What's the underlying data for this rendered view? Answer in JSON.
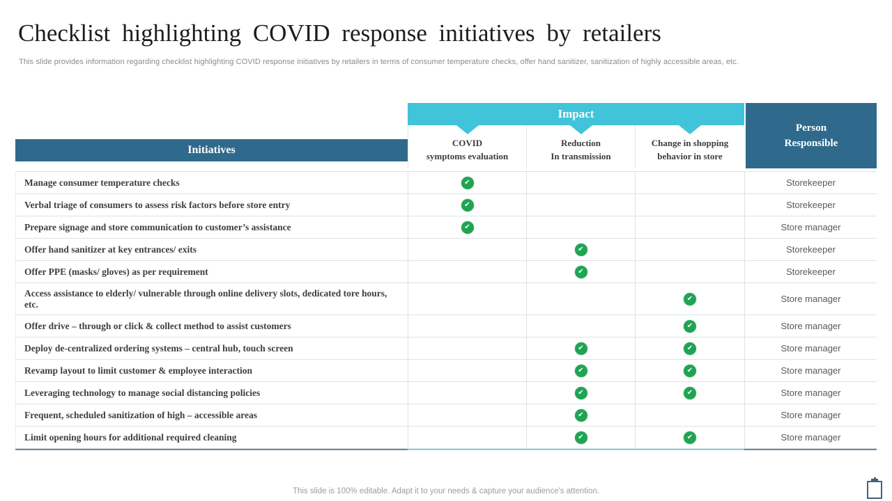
{
  "slide": {
    "title": "Checklist highlighting COVID response initiatives by retailers",
    "subtitle": "This slide provides information regarding checklist highlighting COVID response initiatives by retailers in terms of consumer temperature checks, offer hand sanitizer, sanitization of highly accessible areas, etc.",
    "footer": "This slide is 100% editable. Adapt it to your needs & capture your audience's attention."
  },
  "table": {
    "initiatives_header": "Initiatives",
    "impact_header": "Impact",
    "impact_columns": [
      {
        "line1": "COVID",
        "line2": "symptoms evaluation"
      },
      {
        "line1": "Reduction",
        "line2": "In transmission"
      },
      {
        "line1": "Change in shopping",
        "line2": "behavior in store"
      }
    ],
    "person_header": {
      "line1": "Person",
      "line2": "Responsible"
    },
    "check_glyph": "✔",
    "rows": [
      {
        "initiative": "Manage consumer temperature checks",
        "impact": [
          "✔",
          "",
          ""
        ],
        "person": "Storekeeper"
      },
      {
        "initiative": "Verbal triage of consumers to assess risk factors before store entry",
        "impact": [
          "✔",
          "",
          ""
        ],
        "person": "Storekeeper"
      },
      {
        "initiative": "Prepare signage and store communication to customer’s assistance",
        "impact": [
          "✔",
          "",
          ""
        ],
        "person": "Store manager"
      },
      {
        "initiative": "Offer hand sanitizer at key entrances/ exits",
        "impact": [
          "",
          "✔",
          ""
        ],
        "person": "Storekeeper"
      },
      {
        "initiative": "Offer PPE (masks/ gloves) as per requirement",
        "impact": [
          "",
          "✔",
          ""
        ],
        "person": "Storekeeper"
      },
      {
        "initiative": "Access assistance to elderly/ vulnerable through online delivery slots, dedicated tore hours, etc.",
        "impact": [
          "",
          "",
          "✔"
        ],
        "person": "Store manager"
      },
      {
        "initiative": "Offer drive – through or click & collect method to assist customers",
        "impact": [
          "",
          "",
          "✔"
        ],
        "person": "Store manager"
      },
      {
        "initiative": "Deploy de-centralized ordering systems – central hub, touch screen",
        "impact": [
          "",
          "✔",
          "✔"
        ],
        "person": "Store manager"
      },
      {
        "initiative": "Revamp layout to limit customer & employee interaction",
        "impact": [
          "",
          "✔",
          "✔"
        ],
        "person": "Store manager"
      },
      {
        "initiative": "Leveraging technology to manage social distancing policies",
        "impact": [
          "",
          "✔",
          "✔"
        ],
        "person": "Store manager"
      },
      {
        "initiative": "Frequent, scheduled sanitization of high – accessible areas",
        "impact": [
          "",
          "✔",
          ""
        ],
        "person": "Store manager"
      },
      {
        "initiative": "Limit opening hours for additional required cleaning",
        "impact": [
          "",
          "✔",
          "✔"
        ],
        "person": "Store manager"
      }
    ]
  },
  "icons": {
    "check": "check-circle-icon",
    "clipboard": "clipboard-icon"
  },
  "colors": {
    "impact_bar": "#41c4d9",
    "header_dark_teal": "#2f6a8c",
    "check_green": "#1fa453",
    "bottom_line_dark": "#76858f",
    "bottom_line_teal": "#82d6d0"
  }
}
